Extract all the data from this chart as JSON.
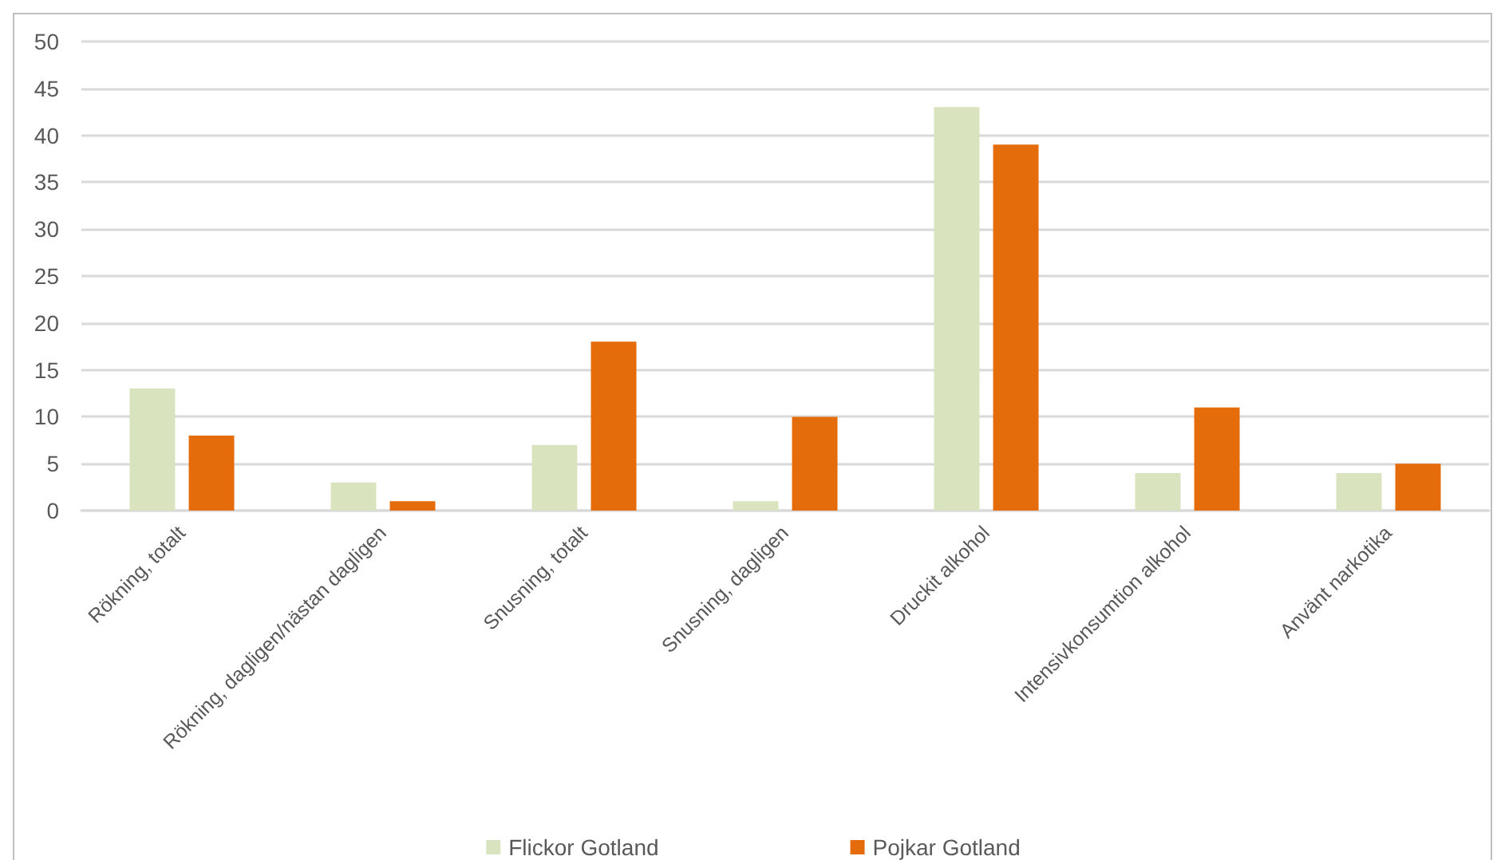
{
  "chart_data": {
    "type": "bar",
    "categories": [
      "Rökning, totalt",
      "Rökning, dagligen/nästan dagligen",
      "Snusning, totalt",
      "Snusning, dagligen",
      "Druckit alkohol",
      "Intensivkonsumtion alkohol",
      "Använt narkotika"
    ],
    "series": [
      {
        "name": "Flickor Gotland",
        "color": "#d9e4be",
        "values": [
          13,
          3,
          7,
          1,
          43,
          4,
          4
        ]
      },
      {
        "name": "Pojkar Gotland",
        "color": "#e46c0a",
        "values": [
          8,
          1,
          18,
          10,
          39,
          11,
          5
        ]
      }
    ],
    "ylim": [
      0,
      50
    ],
    "yticks": [
      0,
      5,
      10,
      15,
      20,
      25,
      30,
      35,
      40,
      45,
      50
    ],
    "grid": "y",
    "legend": "bottom"
  }
}
